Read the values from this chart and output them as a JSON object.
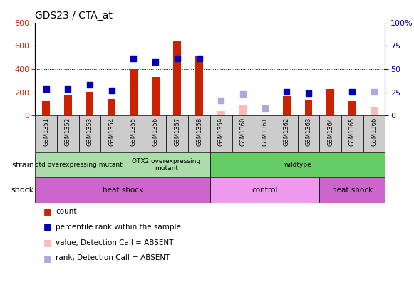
{
  "title": "GDS23 / CTA_at",
  "samples": [
    "GSM1351",
    "GSM1352",
    "GSM1353",
    "GSM1354",
    "GSM1355",
    "GSM1356",
    "GSM1357",
    "GSM1358",
    "GSM1359",
    "GSM1360",
    "GSM1361",
    "GSM1362",
    "GSM1363",
    "GSM1364",
    "GSM1365",
    "GSM1366"
  ],
  "counts": [
    125,
    175,
    205,
    145,
    400,
    330,
    640,
    515,
    null,
    null,
    null,
    165,
    130,
    230,
    125,
    null
  ],
  "ranks": [
    230,
    230,
    265,
    215,
    490,
    460,
    490,
    490,
    null,
    null,
    null,
    205,
    190,
    null,
    205,
    null
  ],
  "absent_counts": [
    null,
    null,
    null,
    null,
    null,
    null,
    null,
    null,
    40,
    95,
    null,
    null,
    null,
    null,
    null,
    75
  ],
  "absent_ranks": [
    null,
    null,
    null,
    null,
    null,
    null,
    null,
    null,
    130,
    185,
    65,
    null,
    null,
    null,
    null,
    205
  ],
  "ylim_left": [
    0,
    800
  ],
  "ylim_right": [
    0,
    100
  ],
  "yticks_left": [
    0,
    200,
    400,
    600,
    800
  ],
  "yticks_right": [
    0,
    25,
    50,
    75,
    100
  ],
  "strain_groups": [
    {
      "label": "otd overexpressing mutant",
      "start": 0,
      "end": 4,
      "color": "#aaddaa"
    },
    {
      "label": "OTX2 overexpressing\nmutant",
      "start": 4,
      "end": 8,
      "color": "#aaddaa"
    },
    {
      "label": "wildtype",
      "start": 8,
      "end": 16,
      "color": "#66cc66"
    }
  ],
  "shock_groups": [
    {
      "label": "heat shock",
      "start": 0,
      "end": 8,
      "color": "#cc66cc"
    },
    {
      "label": "control",
      "start": 8,
      "end": 13,
      "color": "#ee99ee"
    },
    {
      "label": "heat shock",
      "start": 13,
      "end": 16,
      "color": "#cc66cc"
    }
  ],
  "bar_color": "#cc2200",
  "rank_color": "#0000bb",
  "absent_bar_color": "#ffbbbb",
  "absent_rank_color": "#aaaadd",
  "bar_width": 0.35,
  "rank_marker_size": 30,
  "tick_label_color_left": "#cc2200",
  "tick_label_color_right": "#0000bb",
  "plot_bg": "#ffffff",
  "fig_bg": "#ffffff",
  "border_color": "#999999"
}
